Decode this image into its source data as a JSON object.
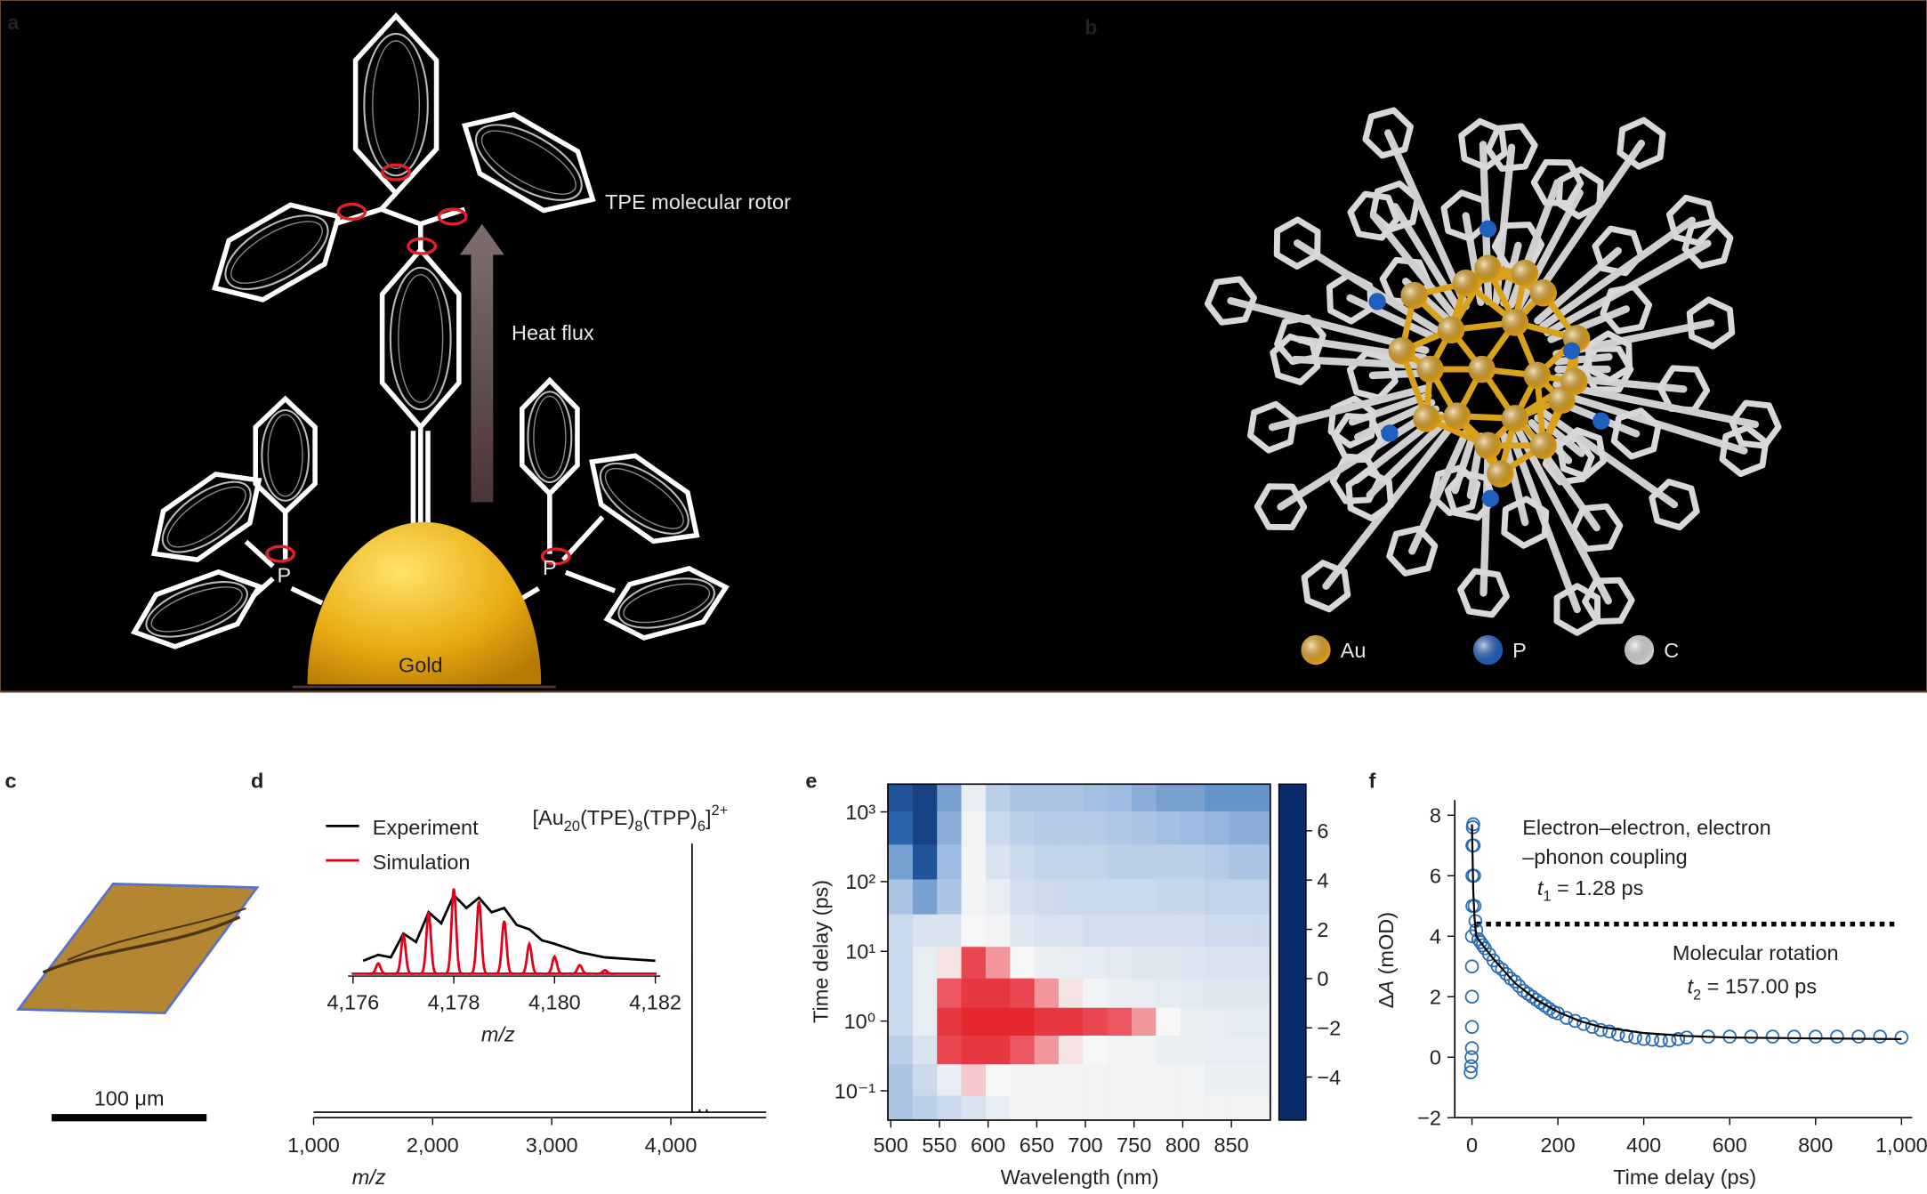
{
  "panels": {
    "a": {
      "letter": "a",
      "labels": [
        "TPE molecular rotor",
        "Heat flux",
        "Gold",
        "P",
        "P"
      ]
    },
    "b": {
      "letter": "b",
      "legend": [
        {
          "name": "Au",
          "color": "#e8a317"
        },
        {
          "name": "P",
          "color": "#1f5fbf"
        },
        {
          "name": "C",
          "color": "#d9d9d9"
        }
      ]
    },
    "c": {
      "letter": "c",
      "scale_bar": "100 μm"
    }
  },
  "chart_data": [
    {
      "type": "line",
      "letter": "d",
      "xlabel": "m/z",
      "title_parts": [
        "[Au",
        "20",
        "(TPE)",
        "8",
        "(TPP)",
        "6",
        "]",
        "2+"
      ],
      "xlim": [
        1000,
        4800
      ],
      "xticks": [
        {
          "value": 1000,
          "label": "1,000"
        },
        {
          "value": 2000,
          "label": "2,000"
        },
        {
          "value": 3000,
          "label": "3,000"
        },
        {
          "value": 4000,
          "label": "4,000"
        }
      ],
      "ylim": [
        0,
        110
      ],
      "color": "#000000",
      "x": [
        1000,
        4170,
        4177.5,
        4178,
        4178.5,
        4186,
        4240,
        4242,
        4244,
        4300,
        4302,
        4304,
        4800
      ],
      "values": [
        2,
        2,
        2,
        100,
        2,
        2,
        2,
        3,
        2,
        2,
        3,
        2,
        2
      ],
      "inset": {
        "xlabel": "m/z",
        "xlim": [
          4175.9,
          4182.1
        ],
        "xticks": [
          {
            "value": 4176,
            "label": "4,176"
          },
          {
            "value": 4178,
            "label": "4,178"
          },
          {
            "value": 4180,
            "label": "4,180"
          },
          {
            "value": 4182,
            "label": "4,182"
          }
        ],
        "ylim": [
          0,
          1.2
        ],
        "series": [
          {
            "name": "Experiment",
            "color": "#000000",
            "x": [
              4176.2,
              4176.5,
              4176.75,
              4177,
              4177.25,
              4177.5,
              4177.75,
              4178,
              4178.25,
              4178.5,
              4178.75,
              4179,
              4179.25,
              4179.5,
              4179.75,
              4180,
              4180.5,
              4181,
              4181.5,
              4182
            ],
            "values": [
              0.18,
              0.25,
              0.22,
              0.5,
              0.4,
              0.75,
              0.62,
              0.95,
              0.8,
              0.92,
              0.75,
              0.8,
              0.6,
              0.55,
              0.42,
              0.38,
              0.28,
              0.22,
              0.2,
              0.18
            ]
          },
          {
            "name": "Simulation",
            "color": "#e0001b",
            "x": [
              4176.5,
              4177,
              4177.5,
              4178,
              4178.5,
              4179,
              4179.5,
              4180,
              4180.5,
              4181
            ],
            "values": [
              0.12,
              0.45,
              0.72,
              1.0,
              0.85,
              0.62,
              0.35,
              0.2,
              0.1,
              0.04
            ]
          }
        ]
      }
    },
    {
      "type": "heatmap",
      "letter": "e",
      "xlabel": "Wavelength (nm)",
      "ylabel": "Time delay (ps)",
      "xlim": [
        497,
        890
      ],
      "xticks": [
        500,
        550,
        600,
        650,
        700,
        750,
        800,
        850
      ],
      "ylim": [
        0.038,
        2500
      ],
      "log_y": true,
      "yticks": [
        {
          "value": 0.1,
          "label": "10⁻¹"
        },
        {
          "value": 1,
          "label": "10⁰"
        },
        {
          "value": 10,
          "label": "10¹"
        },
        {
          "value": 100,
          "label": "10²"
        },
        {
          "value": 1000,
          "label": "10³"
        }
      ],
      "x": [
        510,
        535,
        560,
        585,
        610,
        635,
        660,
        685,
        710,
        735,
        760,
        785,
        810,
        835,
        860,
        885
      ],
      "y": [
        0.05,
        0.15,
        0.4,
        1,
        2.5,
        7,
        20,
        60,
        200,
        600,
        1800
      ],
      "z": [
        [
          1.5,
          2,
          2.5,
          3,
          3.5,
          3.8,
          3.8,
          3.8,
          3.8,
          3.8,
          3.8,
          3.8,
          3.8,
          3.8,
          3.8,
          3.8
        ],
        [
          1.5,
          2.5,
          3.5,
          4.5,
          4,
          3.8,
          3.8,
          3.8,
          3.8,
          3.8,
          3.8,
          3.8,
          3.8,
          3.6,
          3.6,
          3.6
        ],
        [
          2,
          3,
          6.5,
          7,
          7,
          6,
          5,
          4.2,
          4,
          3.8,
          3.8,
          3.6,
          3.6,
          3.5,
          3.5,
          3.5
        ],
        [
          2.5,
          3.5,
          7,
          7.5,
          7.5,
          7.5,
          7,
          7,
          6.5,
          6,
          5,
          4,
          3.6,
          3.5,
          3.4,
          3.4
        ],
        [
          2.5,
          3.5,
          6,
          7,
          7,
          6.5,
          5,
          4.2,
          3.8,
          3.6,
          3.5,
          3.4,
          3.3,
          3.2,
          3.2,
          3.2
        ],
        [
          2.5,
          3.5,
          4.2,
          6.5,
          5,
          4,
          3.6,
          3.5,
          3.4,
          3.3,
          3.2,
          3.2,
          3.1,
          3,
          3,
          3
        ],
        [
          2.5,
          3,
          3,
          4,
          3.8,
          3.2,
          3,
          3,
          2.8,
          2.8,
          2.8,
          2.8,
          2.8,
          2.6,
          2.6,
          2.6
        ],
        [
          1.5,
          0,
          1.5,
          3.8,
          3.5,
          2.8,
          2.6,
          2.5,
          2.5,
          2.5,
          2.5,
          2.4,
          2.4,
          2.2,
          2.2,
          2.2
        ],
        [
          0,
          -3.5,
          1,
          3.8,
          3,
          2.5,
          2.2,
          2.2,
          2.2,
          2,
          2,
          2,
          2,
          1.8,
          1.5,
          1.5
        ],
        [
          -2.5,
          -4.5,
          0.5,
          3.8,
          2.5,
          2,
          1.8,
          1.8,
          1.8,
          1.6,
          1.5,
          1.2,
          1,
          0.8,
          0.5,
          0.5
        ],
        [
          -3.5,
          -4.5,
          0,
          3.5,
          2,
          1.5,
          1.5,
          1.5,
          1.2,
          1,
          0.5,
          0,
          0,
          -0.5,
          -0.5,
          -0.5
        ]
      ],
      "colorbar": {
        "lim": [
          -5.75,
          7.9
        ],
        "ticks": [
          {
            "value": -4,
            "label": "−4"
          },
          {
            "value": -2,
            "label": "−2"
          },
          0,
          2,
          4,
          6
        ],
        "colorscale": [
          [
            -5.75,
            "#0b2c6b"
          ],
          [
            -2,
            "#2f6db7"
          ],
          [
            1,
            "#9dbbe0"
          ],
          [
            4,
            "#f7f7f7"
          ],
          [
            5.5,
            "#ee6670"
          ],
          [
            7.9,
            "#e31b23"
          ]
        ]
      }
    },
    {
      "type": "scatter",
      "letter": "f",
      "xlabel": "Time delay (ps)",
      "ylabel_parts": [
        "Δ",
        "A",
        " (mOD)"
      ],
      "xlim": [
        -40,
        1025
      ],
      "xticks": [
        0,
        200,
        400,
        600,
        800,
        {
          "value": 1000,
          "label": "1,000"
        }
      ],
      "ylim": [
        -2,
        8.5
      ],
      "yticks": [
        {
          "value": -2,
          "label": "−2"
        },
        0,
        2,
        4,
        6,
        8
      ],
      "color": "#2a6db0",
      "x": [
        -3,
        -2,
        -1,
        0,
        0,
        0,
        0,
        0,
        1,
        1,
        1,
        2,
        3,
        4,
        5,
        6,
        8,
        10,
        15,
        20,
        25,
        30,
        40,
        50,
        60,
        70,
        80,
        90,
        100,
        110,
        120,
        130,
        140,
        150,
        160,
        170,
        180,
        190,
        200,
        220,
        240,
        260,
        280,
        300,
        320,
        340,
        360,
        380,
        400,
        420,
        440,
        460,
        480,
        500,
        550,
        600,
        650,
        700,
        750,
        800,
        850,
        900,
        950,
        1000
      ],
      "values": [
        -0.5,
        -0.3,
        0,
        0.3,
        1,
        2,
        3,
        4,
        5,
        6,
        7,
        7.6,
        7.7,
        7,
        6,
        5,
        4.5,
        4.2,
        3.9,
        3.8,
        3.7,
        3.6,
        3.4,
        3.2,
        3.0,
        2.9,
        2.75,
        2.6,
        2.5,
        2.35,
        2.2,
        2.1,
        2.0,
        1.9,
        1.8,
        1.7,
        1.6,
        1.5,
        1.45,
        1.3,
        1.2,
        1.1,
        1.0,
        0.9,
        0.85,
        0.75,
        0.7,
        0.65,
        0.6,
        0.58,
        0.55,
        0.55,
        0.6,
        0.65,
        0.68,
        0.68,
        0.68,
        0.68,
        0.68,
        0.68,
        0.68,
        0.68,
        0.68,
        0.65
      ],
      "fit": {
        "color": "#000000",
        "x": [
          0,
          3,
          6,
          10,
          20,
          50,
          100,
          150,
          200,
          250,
          300,
          400,
          500,
          600,
          800,
          1000
        ],
        "values": [
          7.7,
          5.5,
          4.6,
          4.0,
          3.8,
          3.25,
          2.45,
          1.9,
          1.5,
          1.2,
          1.0,
          0.8,
          0.7,
          0.65,
          0.62,
          0.6
        ]
      },
      "reference_line": {
        "y": 4.4,
        "x": [
          10,
          990
        ]
      },
      "annotations": [
        [
          "Electron–electron, electron"
        ],
        [
          "–phonon coupling"
        ],
        [
          "t",
          "1",
          " = 1.28 ps"
        ],
        [
          "Molecular rotation"
        ],
        [
          "t",
          "2",
          " = 157.00 ps"
        ]
      ]
    }
  ]
}
